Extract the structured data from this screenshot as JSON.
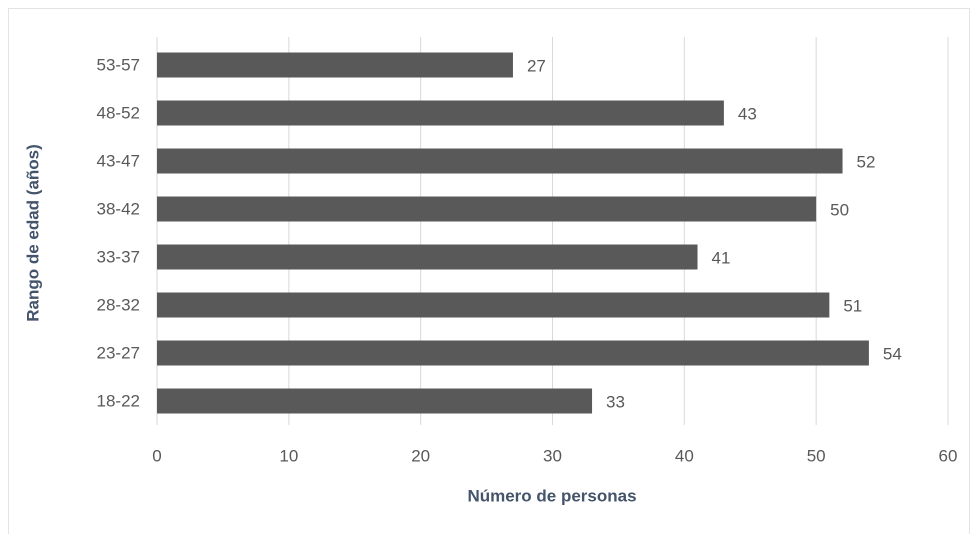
{
  "chart_data": {
    "type": "bar",
    "orientation": "horizontal",
    "xlabel": "Número de personas",
    "ylabel": "Rango de edad (años)",
    "categories": [
      "18-22",
      "23-27",
      "28-32",
      "33-37",
      "38-42",
      "43-47",
      "48-52",
      "53-57"
    ],
    "values": [
      33,
      54,
      51,
      41,
      50,
      52,
      43,
      27
    ],
    "color": "#595959",
    "xlim": [
      0,
      60
    ],
    "xticks": [
      0,
      10,
      20,
      30,
      40,
      50,
      60
    ],
    "grid": true
  }
}
